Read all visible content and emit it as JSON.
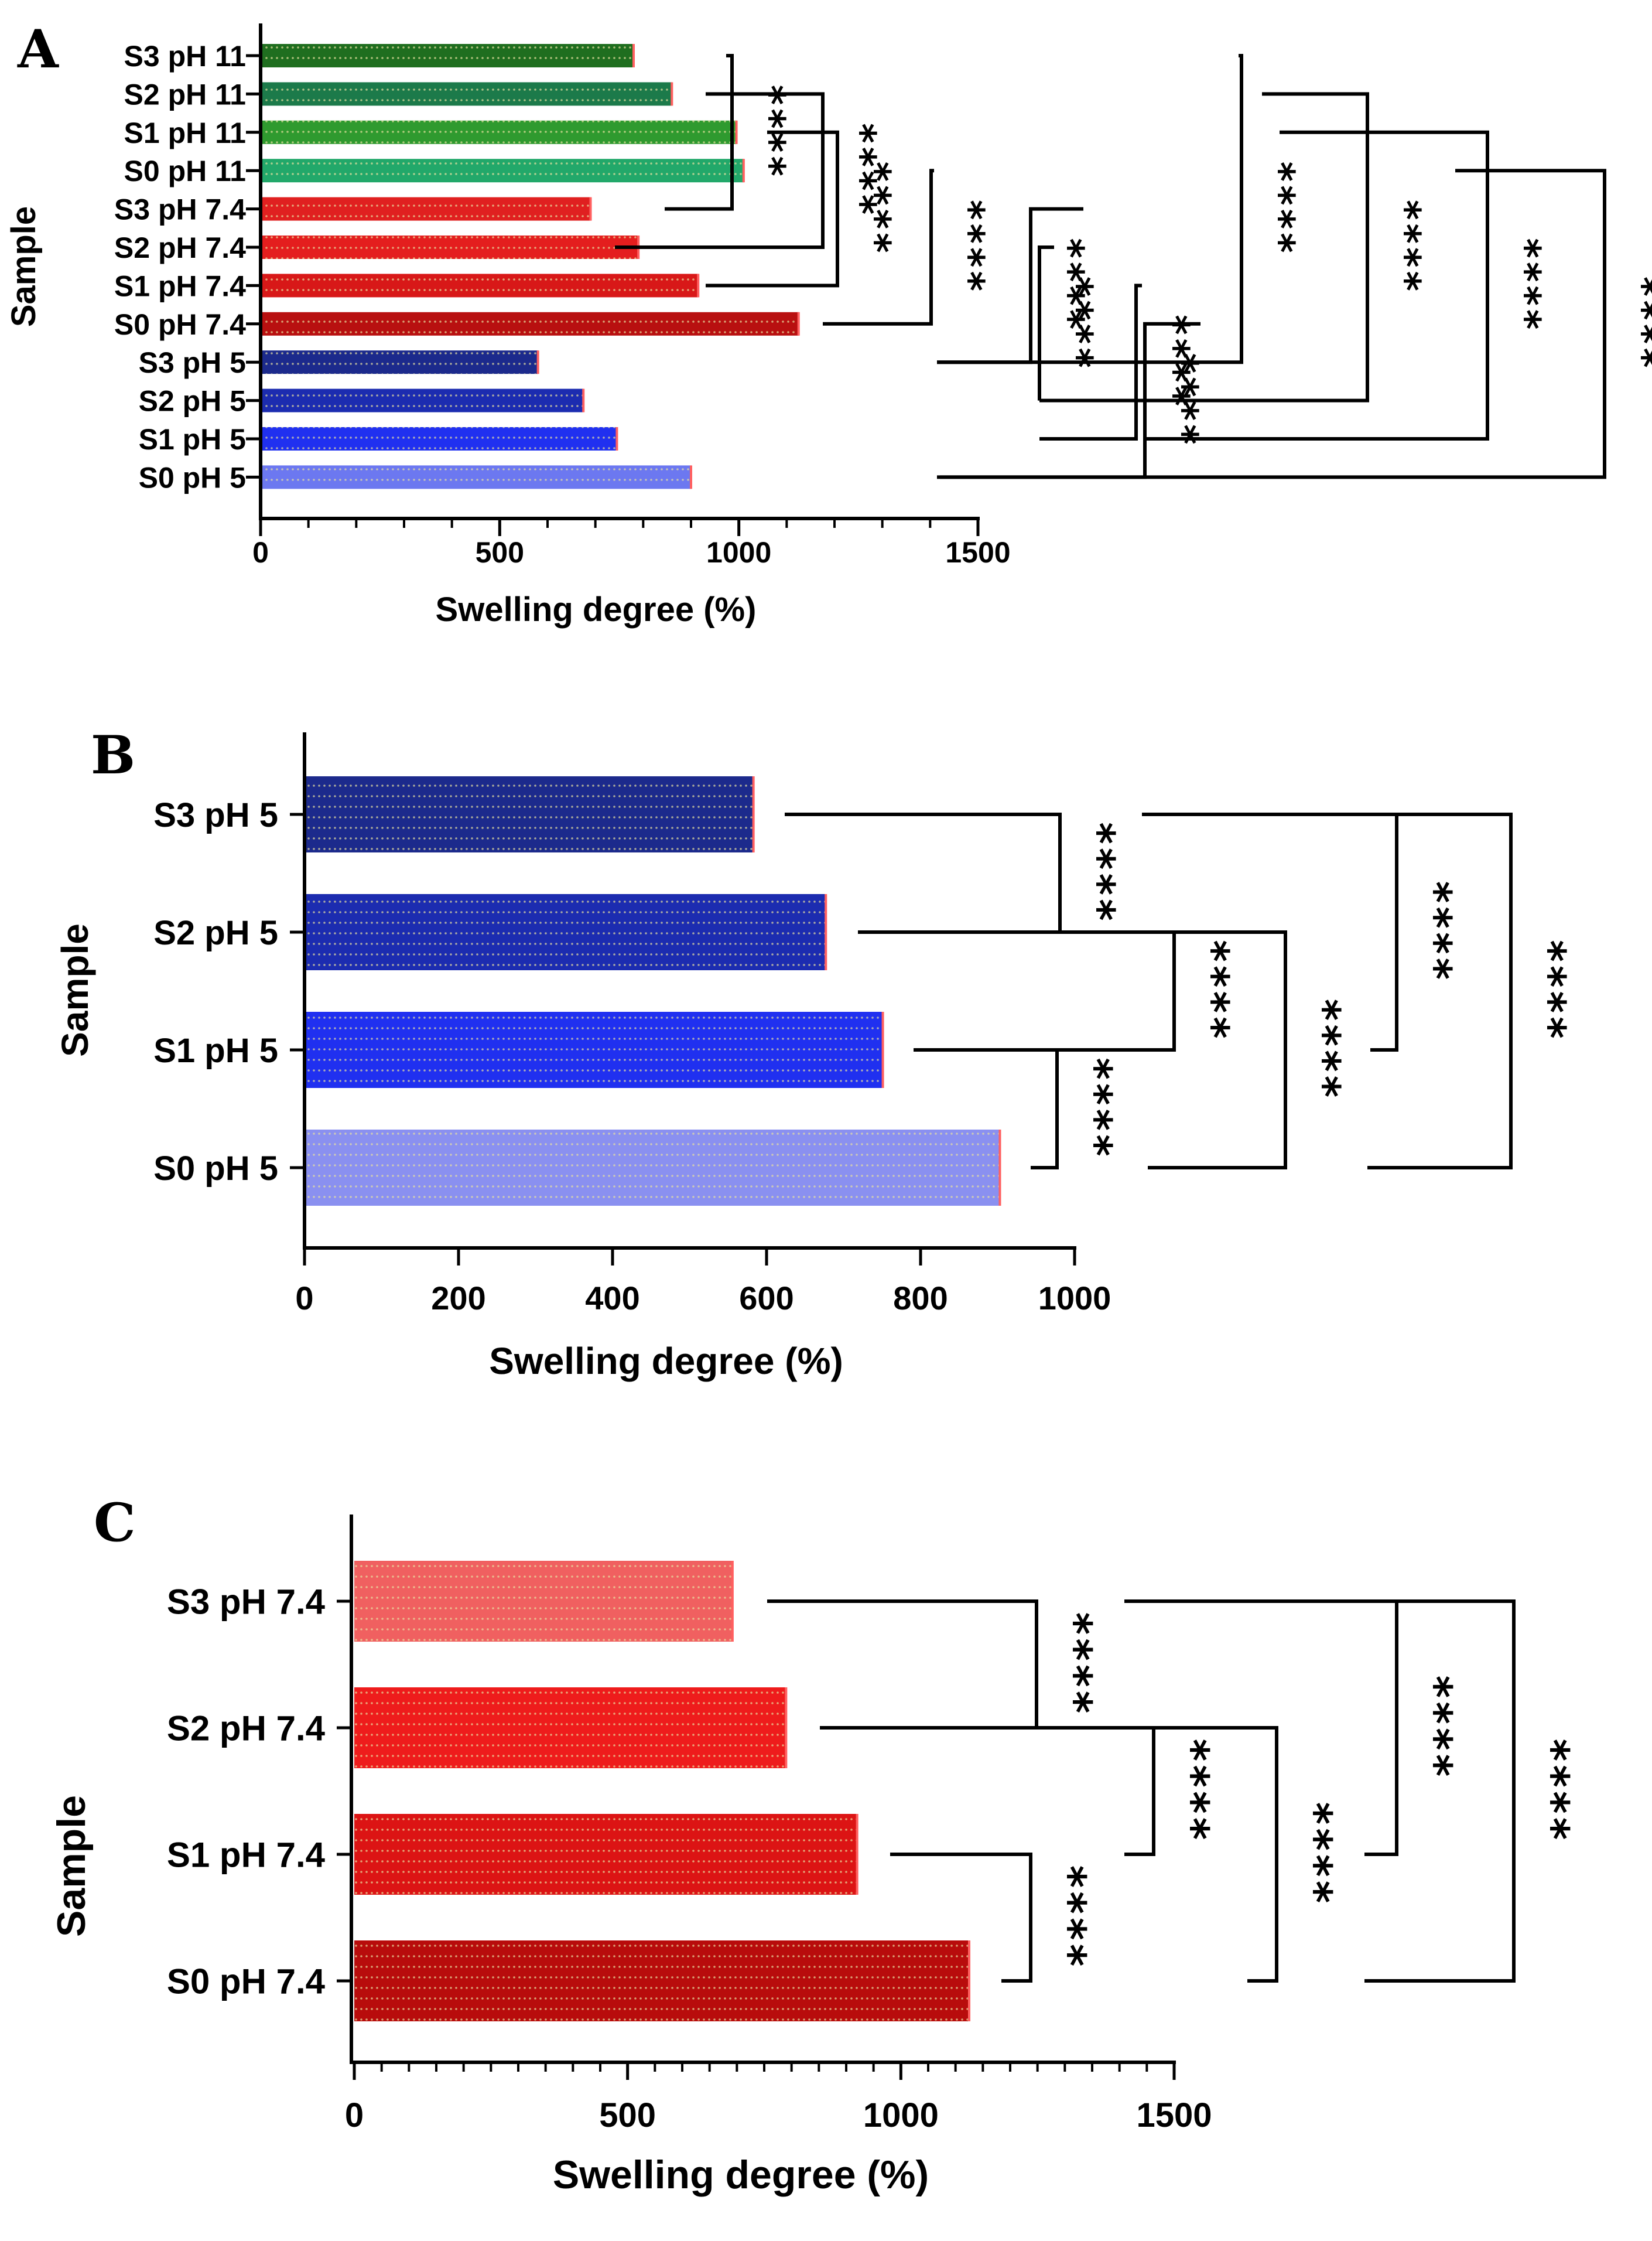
{
  "chart_data": [
    {
      "panel": "A",
      "type": "bar",
      "orientation": "horizontal",
      "xlabel": "Swelling degree (%)",
      "ylabel": "Sample",
      "xlim": [
        0,
        1500
      ],
      "xticks": [
        "0",
        "500",
        "1000",
        "1500"
      ],
      "categories": [
        "S3 pH 11",
        "S2 pH 11",
        "S1 pH 11",
        "S0 pH 11",
        "S3 pH 7.4",
        "S2 pH 7.4",
        "S1 pH 7.4",
        "S0 pH 7.4",
        "S3 pH 5",
        "S2 pH 5",
        "S1 pH 5",
        "S0 pH 5"
      ],
      "values": [
        780,
        860,
        995,
        1010,
        690,
        790,
        915,
        1125,
        580,
        675,
        745,
        900
      ],
      "colors": [
        "#1f6e1f",
        "#1c7a4a",
        "#2f9a2f",
        "#22a86a",
        "#e02020",
        "#e41e1e",
        "#d81818",
        "#b81010",
        "#1c2a8c",
        "#1c2cb0",
        "#2030f0",
        "#6c78f0"
      ],
      "significance": [
        {
          "from": 0,
          "to": 4,
          "label": "****"
        },
        {
          "from": 1,
          "to": 5,
          "label": "****"
        },
        {
          "from": 2,
          "to": 6,
          "label": "****"
        },
        {
          "from": 3,
          "to": 7,
          "label": "****"
        },
        {
          "from": 4,
          "to": 8,
          "label": "****"
        },
        {
          "from": 5,
          "to": 9,
          "label": "****"
        },
        {
          "from": 6,
          "to": 10,
          "label": "****"
        },
        {
          "from": 7,
          "to": 11,
          "label": "****"
        },
        {
          "from": 0,
          "to": 8,
          "label": "****"
        },
        {
          "from": 1,
          "to": 9,
          "label": "****"
        },
        {
          "from": 2,
          "to": 10,
          "label": "****"
        },
        {
          "from": 3,
          "to": 11,
          "label": "****"
        }
      ]
    },
    {
      "panel": "B",
      "type": "bar",
      "orientation": "horizontal",
      "xlabel": "Swelling degree (%)",
      "ylabel": "Sample",
      "xlim": [
        0,
        1000
      ],
      "xticks": [
        "0",
        "200",
        "400",
        "600",
        "800",
        "1000"
      ],
      "categories": [
        "S3 pH 5",
        "S2 pH 5",
        "S1 pH 5",
        "S0 pH 5"
      ],
      "values": [
        583,
        677,
        751,
        903
      ],
      "colors": [
        "#1c2a8c",
        "#1c2cb0",
        "#2030f0",
        "#8a90f0"
      ],
      "significance": [
        {
          "from": 0,
          "to": 1,
          "label": "****"
        },
        {
          "from": 2,
          "to": 3,
          "label": "****"
        },
        {
          "from": 1,
          "to": 2,
          "label": "****"
        },
        {
          "from": 1,
          "to": 3,
          "label": "****"
        },
        {
          "from": 0,
          "to": 2,
          "label": "****"
        },
        {
          "from": 0,
          "to": 3,
          "label": "****"
        }
      ]
    },
    {
      "panel": "C",
      "type": "bar",
      "orientation": "horizontal",
      "xlabel": "Swelling degree (%)",
      "ylabel": "Sample",
      "xlim": [
        0,
        1500
      ],
      "xticks": [
        "0",
        "500",
        "1000",
        "1500"
      ],
      "categories": [
        "S3 pH 7.4",
        "S2 pH 7.4",
        "S1 pH 7.4",
        "S0 pH 7.4"
      ],
      "values": [
        692,
        790,
        920,
        1125
      ],
      "colors": [
        "#f06060",
        "#ee1c1c",
        "#dc1414",
        "#b80c0c"
      ],
      "significance": [
        {
          "from": 0,
          "to": 1,
          "label": "****"
        },
        {
          "from": 2,
          "to": 3,
          "label": "****"
        },
        {
          "from": 1,
          "to": 2,
          "label": "****"
        },
        {
          "from": 1,
          "to": 3,
          "label": "****"
        },
        {
          "from": 0,
          "to": 2,
          "label": "****"
        },
        {
          "from": 0,
          "to": 3,
          "label": "****"
        }
      ]
    }
  ]
}
